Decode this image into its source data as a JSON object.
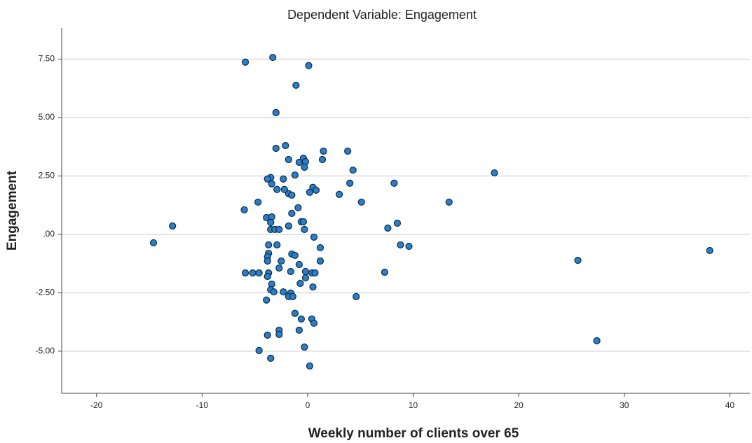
{
  "chart_data": {
    "type": "scatter",
    "title": "Dependent Variable: Engagement",
    "x_label": "Weekly number of clients over 65",
    "y_label": "Engagement",
    "color": "#2a7fc9",
    "grid": true,
    "xlim": [
      -23.3,
      41.9
    ],
    "ylim": [
      -6.8,
      8.83
    ],
    "xticks": [
      -20,
      -10,
      0,
      10,
      20,
      30,
      40
    ],
    "yticks": [
      {
        "value": 7.5,
        "label": "7.50"
      },
      {
        "value": 5,
        "label": "5.00"
      },
      {
        "value": 2.5,
        "label": "2.50"
      },
      {
        "value": 0,
        "label": ".00"
      },
      {
        "value": -2.5,
        "label": "-2.50"
      },
      {
        "value": -5,
        "label": "-5.00"
      }
    ],
    "x": [
      -5.9,
      -3.3,
      0.1,
      -1.1,
      -3.0,
      -2.1,
      -3.0,
      -0.4,
      -0.2,
      -0.8,
      -1.8,
      1.5,
      1.4,
      3.8,
      4.3,
      -0.3,
      -1.2,
      17.7,
      -3.5,
      -3.8,
      -2.3,
      -3.4,
      4.0,
      8.2,
      0.5,
      0.8,
      -2.9,
      -2.2,
      -1.8,
      -1.5,
      0.2,
      3.0,
      5.1,
      13.4,
      -4.7,
      -6.0,
      -0.9,
      -1.5,
      -3.9,
      -3.4,
      -3.5,
      -0.6,
      -0.4,
      8.5,
      -12.8,
      -1.8,
      7.6,
      -3.5,
      -3.1,
      -2.7,
      -0.3,
      0.6,
      -14.6,
      -3.7,
      -2.9,
      8.8,
      9.6,
      1.2,
      38.1,
      -3.7,
      -1.5,
      -1.2,
      -3.8,
      -3.8,
      -2.5,
      1.2,
      25.6,
      -0.8,
      -2.7,
      -5.9,
      -5.2,
      -4.6,
      -3.7,
      -1.6,
      -0.2,
      0.4,
      0.7,
      7.3,
      -3.8,
      -0.2,
      -0.7,
      -3.4,
      0.5,
      -3.5,
      -3.2,
      -2.3,
      -1.6,
      -1.8,
      -1.4,
      4.6,
      -3.9,
      -1.2,
      -0.6,
      0.4,
      0.6,
      -2.7,
      -0.8,
      -3.8,
      -2.7,
      27.4,
      -0.3,
      -4.6,
      -3.5,
      0.2
    ],
    "values": [
      7.37,
      7.57,
      7.22,
      6.38,
      5.21,
      3.8,
      3.68,
      3.26,
      3.11,
      3.08,
      3.2,
      3.56,
      3.2,
      3.56,
      2.75,
      2.87,
      2.54,
      2.63,
      2.43,
      2.37,
      2.37,
      2.16,
      2.19,
      2.19,
      2.01,
      1.89,
      1.92,
      1.92,
      1.74,
      1.68,
      1.8,
      1.71,
      1.38,
      1.38,
      1.38,
      1.05,
      1.14,
      0.9,
      0.72,
      0.75,
      0.51,
      0.54,
      0.54,
      0.48,
      0.36,
      0.36,
      0.27,
      0.21,
      0.21,
      0.21,
      0.21,
      -0.12,
      -0.36,
      -0.45,
      -0.45,
      -0.45,
      -0.51,
      -0.57,
      -0.69,
      -0.81,
      -0.84,
      -0.9,
      -0.96,
      -1.14,
      -1.14,
      -1.14,
      -1.11,
      -1.29,
      -1.44,
      -1.65,
      -1.65,
      -1.65,
      -1.65,
      -1.59,
      -1.59,
      -1.65,
      -1.65,
      -1.62,
      -1.8,
      -1.86,
      -2.1,
      -2.13,
      -2.25,
      -2.37,
      -2.46,
      -2.46,
      -2.51,
      -2.66,
      -2.66,
      -2.66,
      -2.81,
      -3.38,
      -3.62,
      -3.62,
      -3.8,
      -4.1,
      -4.1,
      -4.31,
      -4.28,
      -4.55,
      -4.82,
      -4.97,
      -5.3,
      -5.63
    ]
  }
}
